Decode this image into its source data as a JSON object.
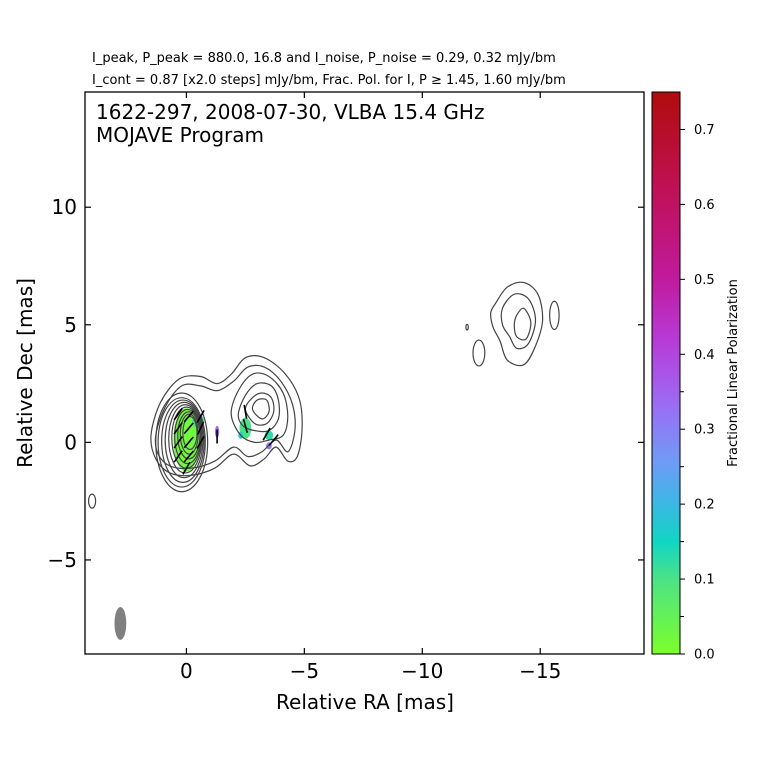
{
  "header": {
    "line1": "I_peak, P_peak = 880.0, 16.8 and I_noise, P_noise = 0.29, 0.32 mJy/bm",
    "line2": "I_cont = 0.87 [x2.0 steps] mJy/bm, Frac. Pol. for I, P ≥ 1.45, 1.60 mJy/bm"
  },
  "chart_data": {
    "type": "contour",
    "title": "1622-297, 2008-07-30, VLBA 15.4 GHz",
    "subtitle": "MOJAVE Program",
    "xlabel": "Relative RA [mas]",
    "ylabel": "Relative Dec [mas]",
    "xlim": [
      4.3,
      -19.4
    ],
    "ylim": [
      -9.0,
      14.9
    ],
    "xticks": [
      0,
      -5,
      -10,
      -15
    ],
    "xtick_labels": [
      "0",
      "−5",
      "−10",
      "−15"
    ],
    "yticks": [
      -5,
      0,
      5,
      10
    ],
    "ytick_labels": [
      "−5",
      "0",
      "5",
      "10"
    ],
    "colorbar": {
      "label": "Fractional Linear Polarization",
      "range": [
        0.0,
        0.75
      ],
      "ticks": [
        0.0,
        0.1,
        0.2,
        0.3,
        0.4,
        0.5,
        0.6,
        0.7
      ],
      "tick_labels": [
        "0.0",
        "0.1",
        "0.2",
        "0.3",
        "0.4",
        "0.5",
        "0.6",
        "0.7"
      ],
      "minor_ticks": [
        0.05,
        0.15,
        0.25,
        0.35
      ],
      "colors": [
        "#7cff2a",
        "#4ee384",
        "#10d6c4",
        "#3eb6e6",
        "#6e9cf6",
        "#9a6ef4",
        "#b83ad6",
        "#c01a9c",
        "#bf1050",
        "#b00c0c"
      ]
    },
    "beam": {
      "x": 2.8,
      "y": -7.7,
      "major_mas": 1.4,
      "minor_mas": 0.5,
      "color": "#808080"
    },
    "core_contours": [
      {
        "x": 0.2,
        "y": 0.0,
        "rx": 1.1,
        "ry": 2.1
      },
      {
        "x": 0.2,
        "y": 0.0,
        "rx": 1.0,
        "ry": 1.9
      },
      {
        "x": 0.15,
        "y": 0.05,
        "rx": 0.9,
        "ry": 1.75
      },
      {
        "x": 0.1,
        "y": 0.1,
        "rx": 0.8,
        "ry": 1.6
      },
      {
        "x": 0.05,
        "y": 0.15,
        "rx": 0.7,
        "ry": 1.45
      },
      {
        "x": 0.0,
        "y": 0.2,
        "rx": 0.62,
        "ry": 1.3
      },
      {
        "x": -0.05,
        "y": 0.25,
        "rx": 0.55,
        "ry": 1.15
      },
      {
        "x": -0.1,
        "y": 0.3,
        "rx": 0.47,
        "ry": 1.0
      },
      {
        "x": -0.12,
        "y": 0.35,
        "rx": 0.38,
        "ry": 0.85
      },
      {
        "x": -0.15,
        "y": 0.4,
        "rx": 0.3,
        "ry": 0.7
      }
    ],
    "jet_contours": [
      [
        [
          1.5,
          0.3
        ],
        [
          1.1,
          1.7
        ],
        [
          0.3,
          2.7
        ],
        [
          -0.6,
          2.8
        ],
        [
          -1.3,
          2.5
        ],
        [
          -1.9,
          2.9
        ],
        [
          -2.5,
          3.6
        ],
        [
          -3.3,
          3.6
        ],
        [
          -4.2,
          2.9
        ],
        [
          -4.8,
          1.8
        ],
        [
          -4.9,
          0.5
        ],
        [
          -4.7,
          -0.6
        ],
        [
          -4.3,
          -0.8
        ],
        [
          -3.8,
          -0.2
        ],
        [
          -3.3,
          -0.7
        ],
        [
          -2.7,
          -1.0
        ],
        [
          -2.0,
          -0.5
        ],
        [
          -1.2,
          -1.1
        ],
        [
          -0.2,
          -1.4
        ],
        [
          0.7,
          -1.3
        ],
        [
          1.3,
          -0.7
        ]
      ],
      [
        [
          1.3,
          0.3
        ],
        [
          0.9,
          1.5
        ],
        [
          0.2,
          2.4
        ],
        [
          -0.6,
          2.4
        ],
        [
          -1.3,
          2.2
        ],
        [
          -2.0,
          2.6
        ],
        [
          -2.6,
          3.2
        ],
        [
          -3.3,
          3.2
        ],
        [
          -4.0,
          2.6
        ],
        [
          -4.5,
          1.6
        ],
        [
          -4.6,
          0.5
        ],
        [
          -4.3,
          -0.4
        ],
        [
          -3.8,
          0.1
        ],
        [
          -3.2,
          -0.4
        ],
        [
          -2.6,
          -0.6
        ],
        [
          -2.0,
          -0.2
        ],
        [
          -1.2,
          -0.8
        ],
        [
          -0.2,
          -1.1
        ],
        [
          0.7,
          -1.0
        ],
        [
          1.2,
          -0.5
        ]
      ],
      [
        [
          -1.9,
          1.2
        ],
        [
          -2.2,
          2.2
        ],
        [
          -2.8,
          2.9
        ],
        [
          -3.5,
          2.8
        ],
        [
          -4.1,
          2.1
        ],
        [
          -4.3,
          1.1
        ],
        [
          -4.1,
          0.3
        ],
        [
          -3.5,
          0.1
        ],
        [
          -2.9,
          0.0
        ],
        [
          -2.3,
          0.3
        ]
      ],
      [
        [
          -2.2,
          1.2
        ],
        [
          -2.5,
          2.0
        ],
        [
          -3.0,
          2.5
        ],
        [
          -3.6,
          2.4
        ],
        [
          -3.9,
          1.8
        ],
        [
          -3.9,
          1.0
        ],
        [
          -3.5,
          0.5
        ],
        [
          -2.9,
          0.5
        ],
        [
          -2.4,
          0.7
        ]
      ],
      [
        [
          -2.5,
          1.4
        ],
        [
          -2.8,
          1.9
        ],
        [
          -3.2,
          2.1
        ],
        [
          -3.6,
          1.9
        ],
        [
          -3.7,
          1.3
        ],
        [
          -3.4,
          0.8
        ],
        [
          -2.9,
          0.8
        ]
      ],
      [
        [
          -2.8,
          1.4
        ],
        [
          -3.0,
          1.8
        ],
        [
          -3.4,
          1.8
        ],
        [
          -3.5,
          1.3
        ],
        [
          -3.2,
          1.0
        ]
      ]
    ],
    "outer_contours": [
      [
        [
          -13.1,
          5.9
        ],
        [
          -13.6,
          6.6
        ],
        [
          -14.3,
          6.8
        ],
        [
          -14.9,
          6.3
        ],
        [
          -15.1,
          5.2
        ],
        [
          -14.8,
          4.1
        ],
        [
          -14.3,
          3.3
        ],
        [
          -13.6,
          3.5
        ],
        [
          -13.3,
          4.3
        ],
        [
          -13.0,
          4.9
        ],
        [
          -12.9,
          5.5
        ]
      ],
      [
        [
          -13.4,
          5.7
        ],
        [
          -13.9,
          6.3
        ],
        [
          -14.5,
          6.1
        ],
        [
          -14.8,
          5.2
        ],
        [
          -14.5,
          4.2
        ],
        [
          -14.0,
          4.0
        ],
        [
          -13.7,
          4.5
        ],
        [
          -13.4,
          5.0
        ]
      ],
      [
        [
          -14.0,
          5.4
        ],
        [
          -14.3,
          5.7
        ],
        [
          -14.6,
          5.1
        ],
        [
          -14.4,
          4.4
        ],
        [
          -14.0,
          4.5
        ],
        [
          -13.9,
          5.0
        ]
      ]
    ],
    "isolated_contours": [
      {
        "x": -15.6,
        "y": 5.4,
        "rx": 0.2,
        "ry": 0.6
      },
      {
        "x": -12.4,
        "y": 3.8,
        "rx": 0.25,
        "ry": 0.55
      },
      {
        "x": -11.9,
        "y": 4.9,
        "rx": 0.05,
        "ry": 0.12
      },
      {
        "x": 4.0,
        "y": -2.5,
        "rx": 0.15,
        "ry": 0.3
      }
    ],
    "polarization_patches": [
      {
        "x": 0.0,
        "y": 0.1,
        "rx": 0.55,
        "ry": 1.35,
        "frac_pol": 0.02
      },
      {
        "x": -0.5,
        "y": 0.9,
        "rx": 0.25,
        "ry": 0.3,
        "frac_pol": 0.1
      },
      {
        "x": -1.3,
        "y": 0.45,
        "rx": 0.09,
        "ry": 0.25,
        "frac_pol": 0.42
      },
      {
        "x": -2.5,
        "y": 0.6,
        "rx": 0.25,
        "ry": 0.45,
        "frac_pol": 0.09
      },
      {
        "x": -2.3,
        "y": 0.3,
        "rx": 0.1,
        "ry": 0.15,
        "frac_pol": 0.2
      },
      {
        "x": -3.5,
        "y": 0.3,
        "rx": 0.18,
        "ry": 0.2,
        "frac_pol": 0.13
      },
      {
        "x": -3.5,
        "y": -0.15,
        "rx": 0.12,
        "ry": 0.15,
        "frac_pol": 0.4
      }
    ],
    "evpa_ticks": [
      {
        "x": 0.35,
        "y": 1.2,
        "angle": -35
      },
      {
        "x": -0.1,
        "y": 1.1,
        "angle": -40
      },
      {
        "x": -0.6,
        "y": 1.1,
        "angle": -30
      },
      {
        "x": 0.35,
        "y": 0.6,
        "angle": -35
      },
      {
        "x": -0.1,
        "y": 0.6,
        "angle": -40
      },
      {
        "x": -0.6,
        "y": 0.6,
        "angle": -25
      },
      {
        "x": 0.35,
        "y": 0.0,
        "angle": -35
      },
      {
        "x": -0.1,
        "y": 0.0,
        "angle": -40
      },
      {
        "x": -0.6,
        "y": 0.0,
        "angle": -30
      },
      {
        "x": 0.35,
        "y": -0.6,
        "angle": -35
      },
      {
        "x": -0.1,
        "y": -0.6,
        "angle": -40
      },
      {
        "x": 0.0,
        "y": -1.1,
        "angle": -30
      },
      {
        "x": -1.3,
        "y": 0.25,
        "angle": 0
      },
      {
        "x": -2.5,
        "y": 1.3,
        "angle": 10
      },
      {
        "x": -2.5,
        "y": 0.7,
        "angle": 15
      },
      {
        "x": -3.4,
        "y": 0.35,
        "angle": -30
      },
      {
        "x": -3.7,
        "y": 0.1,
        "angle": -40
      }
    ]
  }
}
